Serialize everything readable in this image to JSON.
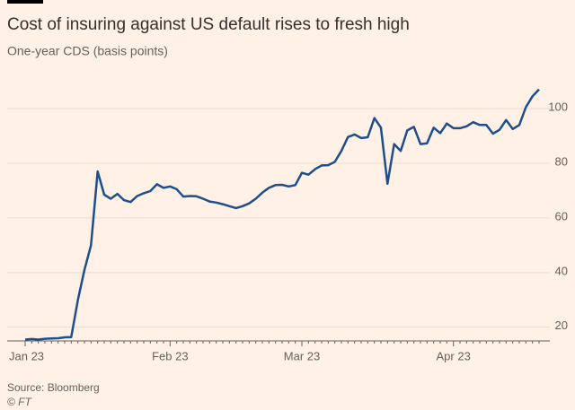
{
  "chart_data": {
    "type": "line",
    "title": "Cost of insuring against US default rises to fresh high",
    "subtitle": "One-year CDS (basis points)",
    "source": "Source: Bloomberg",
    "credit": "© FT",
    "color": "#1f4e8c",
    "grid": true,
    "ylim": [
      15,
      108
    ],
    "yticks": [
      20,
      40,
      60,
      80,
      100
    ],
    "categories": [
      "Jan 23",
      null,
      null,
      null,
      null,
      null,
      null,
      null,
      null,
      null,
      null,
      null,
      null,
      null,
      null,
      null,
      null,
      null,
      null,
      null,
      null,
      null,
      "Feb 23",
      null,
      null,
      null,
      null,
      null,
      null,
      null,
      null,
      null,
      null,
      null,
      null,
      null,
      null,
      null,
      null,
      null,
      null,
      null,
      "Mar 23",
      null,
      null,
      null,
      null,
      null,
      null,
      null,
      null,
      null,
      null,
      null,
      null,
      null,
      null,
      null,
      null,
      null,
      null,
      null,
      null,
      null,
      null,
      "Apr 23",
      null,
      null,
      null,
      null,
      null,
      null,
      null,
      null,
      null,
      null,
      null,
      null,
      null
    ],
    "values": [
      15.5,
      15.7,
      15.5,
      15.8,
      15.9,
      16.0,
      16.3,
      16.4,
      30,
      41,
      50,
      77,
      68.5,
      67,
      68.8,
      66.5,
      65.8,
      68,
      69,
      69.8,
      72.3,
      71,
      71.5,
      70.5,
      67.8,
      68,
      67.9,
      67,
      66,
      65.6,
      65,
      64.3,
      63.6,
      64.3,
      65.3,
      67,
      69.2,
      71,
      72,
      72.1,
      71.5,
      72,
      76.5,
      75.8,
      77.8,
      79.2,
      79.3,
      80.5,
      84.5,
      89.6,
      90.5,
      89.2,
      89.5,
      96.5,
      93,
      72.5,
      87,
      84.5,
      92,
      93.3,
      87,
      87.3,
      93,
      91,
      94.5,
      92.8,
      92.8,
      93.5,
      95,
      94,
      94,
      90.8,
      92.2,
      95.8,
      92.5,
      94,
      100.5,
      104.5,
      107
    ]
  }
}
